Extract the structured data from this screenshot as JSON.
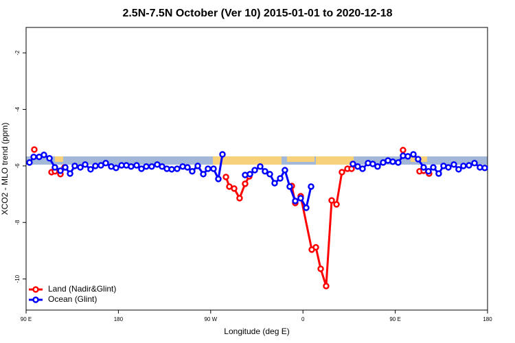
{
  "chart_data": {
    "type": "line",
    "title": "2.5N-7.5N October (Ver 10)   2015-01-01 to 2020-12-18",
    "x_label": "Longitude (deg E)",
    "y_label": "XCO2 - MLO trend (ppm)",
    "xlim": [
      90,
      540
    ],
    "ylim": [
      -11.1,
      -1.1
    ],
    "xticks": [
      {
        "value": 90,
        "label": "90 E"
      },
      {
        "value": 180,
        "label": "180"
      },
      {
        "value": 270,
        "label": "90 W"
      },
      {
        "value": 360,
        "label": "0"
      },
      {
        "value": 450,
        "label": "90 E"
      },
      {
        "value": 540,
        "label": "180"
      }
    ],
    "yticks": [
      -10,
      -8,
      -6,
      -4,
      -2
    ],
    "legend": "bottom-left",
    "series": [
      {
        "name": "Land (Nadir&Glint)",
        "color": "#ff0000",
        "x": [
          98,
          null,
          114.8,
          118.1,
          123.5,
          127.5,
          null,
          284.9,
          288.2,
          292.9,
          298.2,
          303.6,
          307.6,
          null,
          349.1,
          352.5,
          357.8,
          368.6,
          372.6,
          377.3,
          382.6,
          388,
          392.7,
          398,
          403.4,
          407.4,
          null,
          457.6,
          null,
          473.7,
          477.7,
          483
        ],
        "values": [
          -5.42,
          null,
          -6.22,
          -6.19,
          -6.29,
          -6.05,
          null,
          -6.39,
          -6.73,
          -6.8,
          -7.14,
          -6.63,
          -6.37,
          null,
          -6.71,
          -7.31,
          -7.07,
          -8.96,
          -8.88,
          -9.64,
          -10.25,
          -7.22,
          -7.36,
          -6.22,
          -6.1,
          -6.1,
          null,
          -5.44,
          null,
          -6.19,
          -6.17,
          -6.27
        ]
      },
      {
        "name": "Ocean (Glint)",
        "color": "#0000ff",
        "x": [
          93.3,
          97.4,
          102.7,
          107.4,
          112.8,
          118.1,
          123.5,
          128.2,
          132.9,
          137.5,
          142.9,
          147.6,
          152.9,
          157.6,
          163,
          167.7,
          173,
          177.7,
          183.1,
          187.8,
          192.4,
          197.8,
          202.5,
          207.2,
          212.5,
          217.9,
          222.6,
          227.3,
          232,
          237.3,
          242.7,
          247.4,
          252,
          257.4,
          262.8,
          267.4,
          272.8,
          277.5,
          281.5,
          null,
          303.6,
          308.3,
          313,
          318.3,
          323,
          327.7,
          332.4,
          337.8,
          342.4,
          347.1,
          352.5,
          357.8,
          363.2,
          367.9,
          null,
          408.7,
          413.4,
          418.1,
          423.5,
          428.1,
          432.8,
          438.2,
          442.9,
          447.6,
          452.9,
          457.6,
          462.3,
          467.7,
          472.3,
          477.7,
          482.4,
          487.1,
          492.4,
          497.1,
          501.8,
          507.2,
          511.8,
          516.5,
          521.9,
          527.3,
          532.6,
          537.3
        ],
        "values": [
          -5.88,
          -5.68,
          -5.68,
          -5.61,
          -5.73,
          -6.05,
          -6.17,
          -6.05,
          -6.27,
          -6.0,
          -6.05,
          -5.95,
          -6.12,
          -6.0,
          -5.98,
          -5.9,
          -6.02,
          -6.07,
          -5.98,
          -5.98,
          -6.02,
          -5.98,
          -6.1,
          -6.02,
          -6.02,
          -5.95,
          -6.02,
          -6.1,
          -6.12,
          -6.1,
          -6.02,
          -6.05,
          -6.19,
          -6.0,
          -6.29,
          -6.1,
          -6.1,
          -6.46,
          -5.59,
          null,
          -6.32,
          -6.29,
          -6.15,
          -6.02,
          -6.19,
          -6.29,
          -6.61,
          -6.44,
          -6.15,
          -6.73,
          -7.24,
          -7.14,
          -7.48,
          -6.73,
          null,
          -5.93,
          -6.02,
          -6.1,
          -5.9,
          -5.93,
          -6.02,
          -5.88,
          -5.81,
          -5.85,
          -5.88,
          -5.64,
          -5.66,
          -5.59,
          -5.76,
          -6.05,
          -6.19,
          -6.05,
          -6.27,
          -6.0,
          -6.05,
          -5.95,
          -6.12,
          -6.0,
          -5.98,
          -5.9,
          -6.05,
          -6.07
        ]
      }
    ]
  }
}
